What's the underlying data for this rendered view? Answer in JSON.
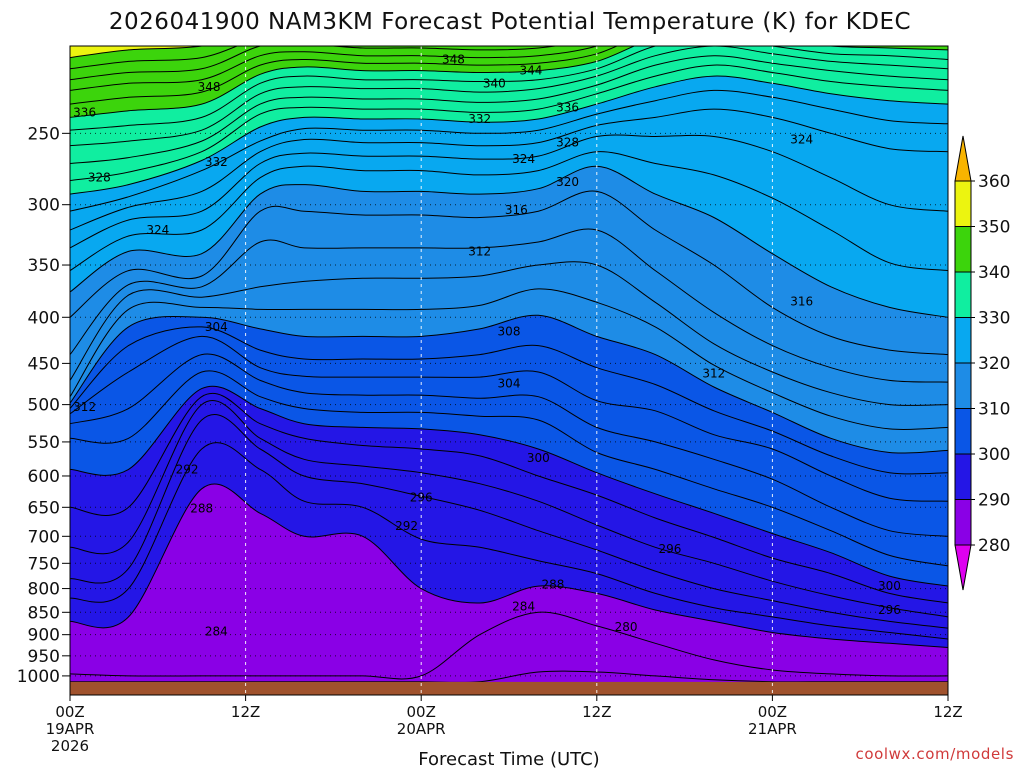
{
  "chart_data": {
    "type": "time-height contour",
    "title": "2026041900 NAM3KM Forecast Potential Temperature (K) for KDEC",
    "xlabel": "Forecast Time (UTC)",
    "ylabel": "Pressure (hPa)",
    "x_range_hours": [
      0,
      60
    ],
    "y_range_hpa": [
      1050,
      200
    ],
    "y_ticks": [
      250,
      300,
      350,
      400,
      450,
      500,
      550,
      600,
      650,
      700,
      750,
      800,
      850,
      900,
      950,
      1000
    ],
    "x_ticks": [
      {
        "hour": 0,
        "line1": "00Z",
        "line2": "19APR",
        "line3": "2026"
      },
      {
        "hour": 12,
        "line1": "12Z",
        "line2": "",
        "line3": ""
      },
      {
        "hour": 24,
        "line1": "00Z",
        "line2": "20APR",
        "line3": ""
      },
      {
        "hour": 36,
        "line1": "12Z",
        "line2": "",
        "line3": ""
      },
      {
        "hour": 48,
        "line1": "00Z",
        "line2": "21APR",
        "line3": ""
      },
      {
        "hour": 60,
        "line1": "12Z",
        "line2": "",
        "line3": ""
      }
    ],
    "colorbar": {
      "levels": [
        280,
        290,
        300,
        310,
        320,
        330,
        340,
        350,
        360
      ],
      "colors": [
        "#de00f0",
        "#8a00e6",
        "#2416e6",
        "#0a56e6",
        "#1e8ce6",
        "#08a8f0",
        "#10eea0",
        "#3cd40c",
        "#ecf410",
        "#f8b400"
      ]
    },
    "contour_interval": 2,
    "ground_color": "#a0522d",
    "profiles": {
      "hours": [
        0,
        4,
        9,
        13,
        16,
        20,
        24,
        28,
        32,
        36,
        40,
        44,
        48,
        52,
        56,
        60
      ],
      "theta_levels": [
        276,
        280,
        284,
        288,
        290,
        292,
        294,
        296,
        298,
        300,
        302,
        304,
        306,
        308,
        310,
        312,
        314,
        316,
        318,
        320,
        322,
        324,
        326,
        328,
        330,
        332,
        334,
        336,
        338,
        340,
        342,
        344,
        346,
        348,
        350,
        352,
        354,
        356,
        358,
        360,
        370
      ],
      "pressure_hpa": [
        [
          1030,
          1015,
          995,
          870,
          820,
          780,
          720,
          650,
          590,
          545,
          525,
          512,
          505,
          498,
          490,
          470,
          440,
          400,
          375,
          355,
          335,
          320,
          305,
          292,
          282,
          270,
          258,
          248,
          240,
          232,
          224,
          218,
          212,
          206,
          200,
          196,
          192,
          188,
          184,
          182,
          176
        ],
        [
          1030,
          1015,
          1000,
          860,
          800,
          760,
          710,
          650,
          590,
          545,
          505,
          460,
          430,
          410,
          392,
          378,
          368,
          355,
          338,
          325,
          312,
          302,
          294,
          285,
          276,
          266,
          255,
          245,
          236,
          228,
          220,
          214,
          208,
          202,
          196,
          192,
          188,
          184,
          180,
          177,
          170
        ],
        [
          1030,
          1015,
          1000,
          620,
          560,
          520,
          500,
          490,
          480,
          460,
          440,
          420,
          410,
          400,
          390,
          380,
          370,
          360,
          340,
          320,
          305,
          290,
          275,
          268,
          262,
          255,
          248,
          240,
          232,
          225,
          218,
          212,
          206,
          200,
          194,
          190,
          186,
          182,
          178,
          175,
          168
        ],
        [
          1030,
          1015,
          1000,
          660,
          590,
          560,
          545,
          525,
          505,
          490,
          470,
          455,
          435,
          412,
          392,
          370,
          330,
          305,
          292,
          280,
          270,
          262,
          255,
          246,
          238,
          232,
          226,
          220,
          215,
          210,
          205,
          200,
          196,
          192,
          188,
          185,
          182,
          179,
          176,
          173,
          166
        ],
        [
          1030,
          1015,
          1000,
          700,
          640,
          600,
          575,
          545,
          525,
          505,
          485,
          465,
          445,
          420,
          392,
          365,
          335,
          305,
          285,
          272,
          263,
          254,
          247,
          240,
          234,
          228,
          222,
          216,
          211,
          207,
          203,
          199,
          195,
          191,
          187,
          184,
          181,
          178,
          175,
          172,
          165
        ],
        [
          1030,
          1015,
          1000,
          700,
          650,
          612,
          585,
          555,
          530,
          510,
          488,
          466,
          445,
          420,
          392,
          362,
          335,
          308,
          290,
          275,
          265,
          256,
          248,
          241,
          235,
          229,
          223,
          218,
          213,
          209,
          205,
          201,
          197,
          193,
          189,
          186,
          183,
          180,
          177,
          174,
          167
        ],
        [
          1030,
          1015,
          1000,
          800,
          705,
          632,
          595,
          560,
          532,
          510,
          488,
          466,
          445,
          420,
          392,
          362,
          335,
          308,
          290,
          275,
          265,
          256,
          248,
          241,
          235,
          229,
          223,
          218,
          213,
          209,
          205,
          201,
          197,
          193,
          189,
          186,
          183,
          180,
          177,
          174,
          167
        ],
        [
          1030,
          1015,
          900,
          830,
          720,
          655,
          612,
          570,
          540,
          515,
          492,
          466,
          440,
          412,
          388,
          360,
          335,
          310,
          292,
          278,
          267,
          258,
          250,
          243,
          237,
          231,
          225,
          219,
          214,
          210,
          206,
          202,
          198,
          194,
          190,
          187,
          184,
          181,
          178,
          175,
          168
        ],
        [
          1030,
          990,
          850,
          795,
          745,
          690,
          640,
          600,
          560,
          520,
          490,
          460,
          430,
          398,
          372,
          350,
          330,
          305,
          288,
          275,
          265,
          256,
          248,
          241,
          235,
          229,
          223,
          218,
          213,
          209,
          205,
          201,
          197,
          193,
          189,
          186,
          183,
          180,
          177,
          174,
          167
        ],
        [
          1030,
          990,
          880,
          810,
          770,
          725,
          680,
          630,
          595,
          565,
          530,
          495,
          455,
          420,
          385,
          350,
          320,
          290,
          272,
          262,
          252,
          245,
          238,
          232,
          226,
          221,
          216,
          212,
          208,
          204,
          200,
          196,
          193,
          190,
          187,
          184,
          181,
          178,
          175,
          172,
          165
        ],
        [
          1030,
          1000,
          920,
          845,
          810,
          765,
          720,
          668,
          628,
          590,
          550,
          508,
          475,
          440,
          410,
          385,
          355,
          320,
          292,
          270,
          252,
          240,
          230,
          222,
          216,
          210,
          205,
          200,
          196,
          192,
          188,
          185,
          182,
          179,
          176,
          173,
          170,
          167,
          164,
          161,
          155
        ],
        [
          1030,
          1010,
          960,
          870,
          840,
          800,
          750,
          702,
          660,
          620,
          575,
          540,
          508,
          478,
          452,
          428,
          395,
          350,
          310,
          278,
          252,
          235,
          224,
          216,
          210,
          205,
          200,
          196,
          192,
          188,
          185,
          182,
          179,
          176,
          173,
          170,
          167,
          164,
          161,
          158,
          152
        ],
        [
          1030,
          1015,
          985,
          895,
          860,
          825,
          785,
          740,
          695,
          650,
          605,
          560,
          535,
          510,
          485,
          460,
          430,
          390,
          340,
          295,
          262,
          240,
          228,
          220,
          214,
          209,
          204,
          200,
          196,
          192,
          188,
          185,
          182,
          179,
          176,
          173,
          170,
          167,
          164,
          161,
          155
        ],
        [
          1030,
          1015,
          995,
          910,
          880,
          850,
          815,
          770,
          730,
          690,
          650,
          600,
          570,
          545,
          515,
          485,
          455,
          420,
          370,
          320,
          280,
          250,
          235,
          226,
          219,
          213,
          208,
          204,
          200,
          196,
          192,
          188,
          185,
          182,
          179,
          176,
          173,
          170,
          167,
          164,
          158
        ],
        [
          1030,
          1015,
          1000,
          920,
          895,
          870,
          840,
          810,
          775,
          735,
          690,
          635,
          595,
          565,
          532,
          500,
          470,
          435,
          390,
          348,
          300,
          260,
          242,
          230,
          222,
          216,
          210,
          205,
          201,
          197,
          193,
          189,
          186,
          183,
          180,
          177,
          174,
          171,
          168,
          165,
          159
        ],
        [
          1030,
          1015,
          1000,
          930,
          910,
          885,
          860,
          830,
          795,
          755,
          700,
          640,
          595,
          562,
          530,
          500,
          472,
          440,
          400,
          355,
          305,
          262,
          244,
          232,
          224,
          218,
          212,
          207,
          202,
          198,
          194,
          190,
          187,
          184,
          181,
          178,
          175,
          172,
          169,
          166,
          160
        ]
      ]
    },
    "contour_labels": [
      {
        "value": "348",
        "hour": 9.5,
        "hpa": 222
      },
      {
        "value": "348",
        "hour": 26.2,
        "hpa": 207
      },
      {
        "value": "344",
        "hour": 31.5,
        "hpa": 213
      },
      {
        "value": "340",
        "hour": 29,
        "hpa": 220
      },
      {
        "value": "336",
        "hour": 1,
        "hpa": 237
      },
      {
        "value": "336",
        "hour": 34,
        "hpa": 234
      },
      {
        "value": "332",
        "hour": 10,
        "hpa": 269
      },
      {
        "value": "332",
        "hour": 28,
        "hpa": 241
      },
      {
        "value": "328",
        "hour": 2,
        "hpa": 280
      },
      {
        "value": "328",
        "hour": 34,
        "hpa": 256
      },
      {
        "value": "324",
        "hour": 6,
        "hpa": 320
      },
      {
        "value": "324",
        "hour": 31,
        "hpa": 267
      },
      {
        "value": "324",
        "hour": 50,
        "hpa": 254
      },
      {
        "value": "320",
        "hour": 34,
        "hpa": 283
      },
      {
        "value": "316",
        "hour": 30.5,
        "hpa": 304
      },
      {
        "value": "316",
        "hour": 50,
        "hpa": 384
      },
      {
        "value": "312",
        "hour": 28,
        "hpa": 338
      },
      {
        "value": "312",
        "hour": 1,
        "hpa": 503
      },
      {
        "value": "312",
        "hour": 44,
        "hpa": 462
      },
      {
        "value": "308",
        "hour": 30,
        "hpa": 415
      },
      {
        "value": "304",
        "hour": 10,
        "hpa": 410
      },
      {
        "value": "304",
        "hour": 30,
        "hpa": 474
      },
      {
        "value": "300",
        "hour": 32,
        "hpa": 573
      },
      {
        "value": "300",
        "hour": 56,
        "hpa": 795
      },
      {
        "value": "296",
        "hour": 24,
        "hpa": 634
      },
      {
        "value": "296",
        "hour": 41,
        "hpa": 723
      },
      {
        "value": "296",
        "hour": 56,
        "hpa": 845
      },
      {
        "value": "292",
        "hour": 8,
        "hpa": 590
      },
      {
        "value": "292",
        "hour": 23,
        "hpa": 682
      },
      {
        "value": "288",
        "hour": 9,
        "hpa": 652
      },
      {
        "value": "288",
        "hour": 33,
        "hpa": 792
      },
      {
        "value": "284",
        "hour": 10,
        "hpa": 893
      },
      {
        "value": "284",
        "hour": 31,
        "hpa": 838
      },
      {
        "value": "280",
        "hour": 38,
        "hpa": 883
      }
    ],
    "credit": "coolwx.com/models"
  }
}
